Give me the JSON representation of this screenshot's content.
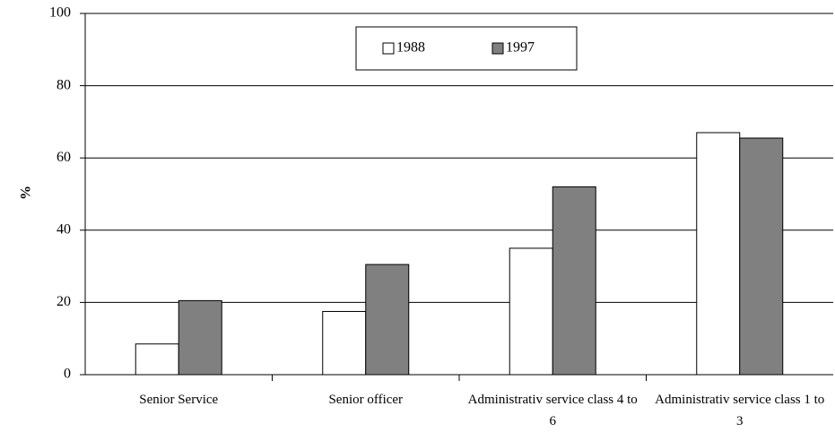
{
  "chart_data": {
    "type": "bar",
    "ylabel": "%",
    "categories": [
      "Senior Service",
      "Senior officer",
      "Administrativ service class 4 to 6",
      "Administrativ service class 1 to 3"
    ],
    "series": [
      {
        "name": "1988",
        "color": "#ffffff",
        "values": [
          8.5,
          17.5,
          35,
          67
        ]
      },
      {
        "name": "1997",
        "color": "#808080",
        "values": [
          20.5,
          30.5,
          52,
          65.5
        ]
      }
    ],
    "ylim": [
      0,
      100
    ],
    "yticks": [
      0,
      20,
      40,
      60,
      80,
      100
    ],
    "grid": true,
    "legend": "top"
  }
}
